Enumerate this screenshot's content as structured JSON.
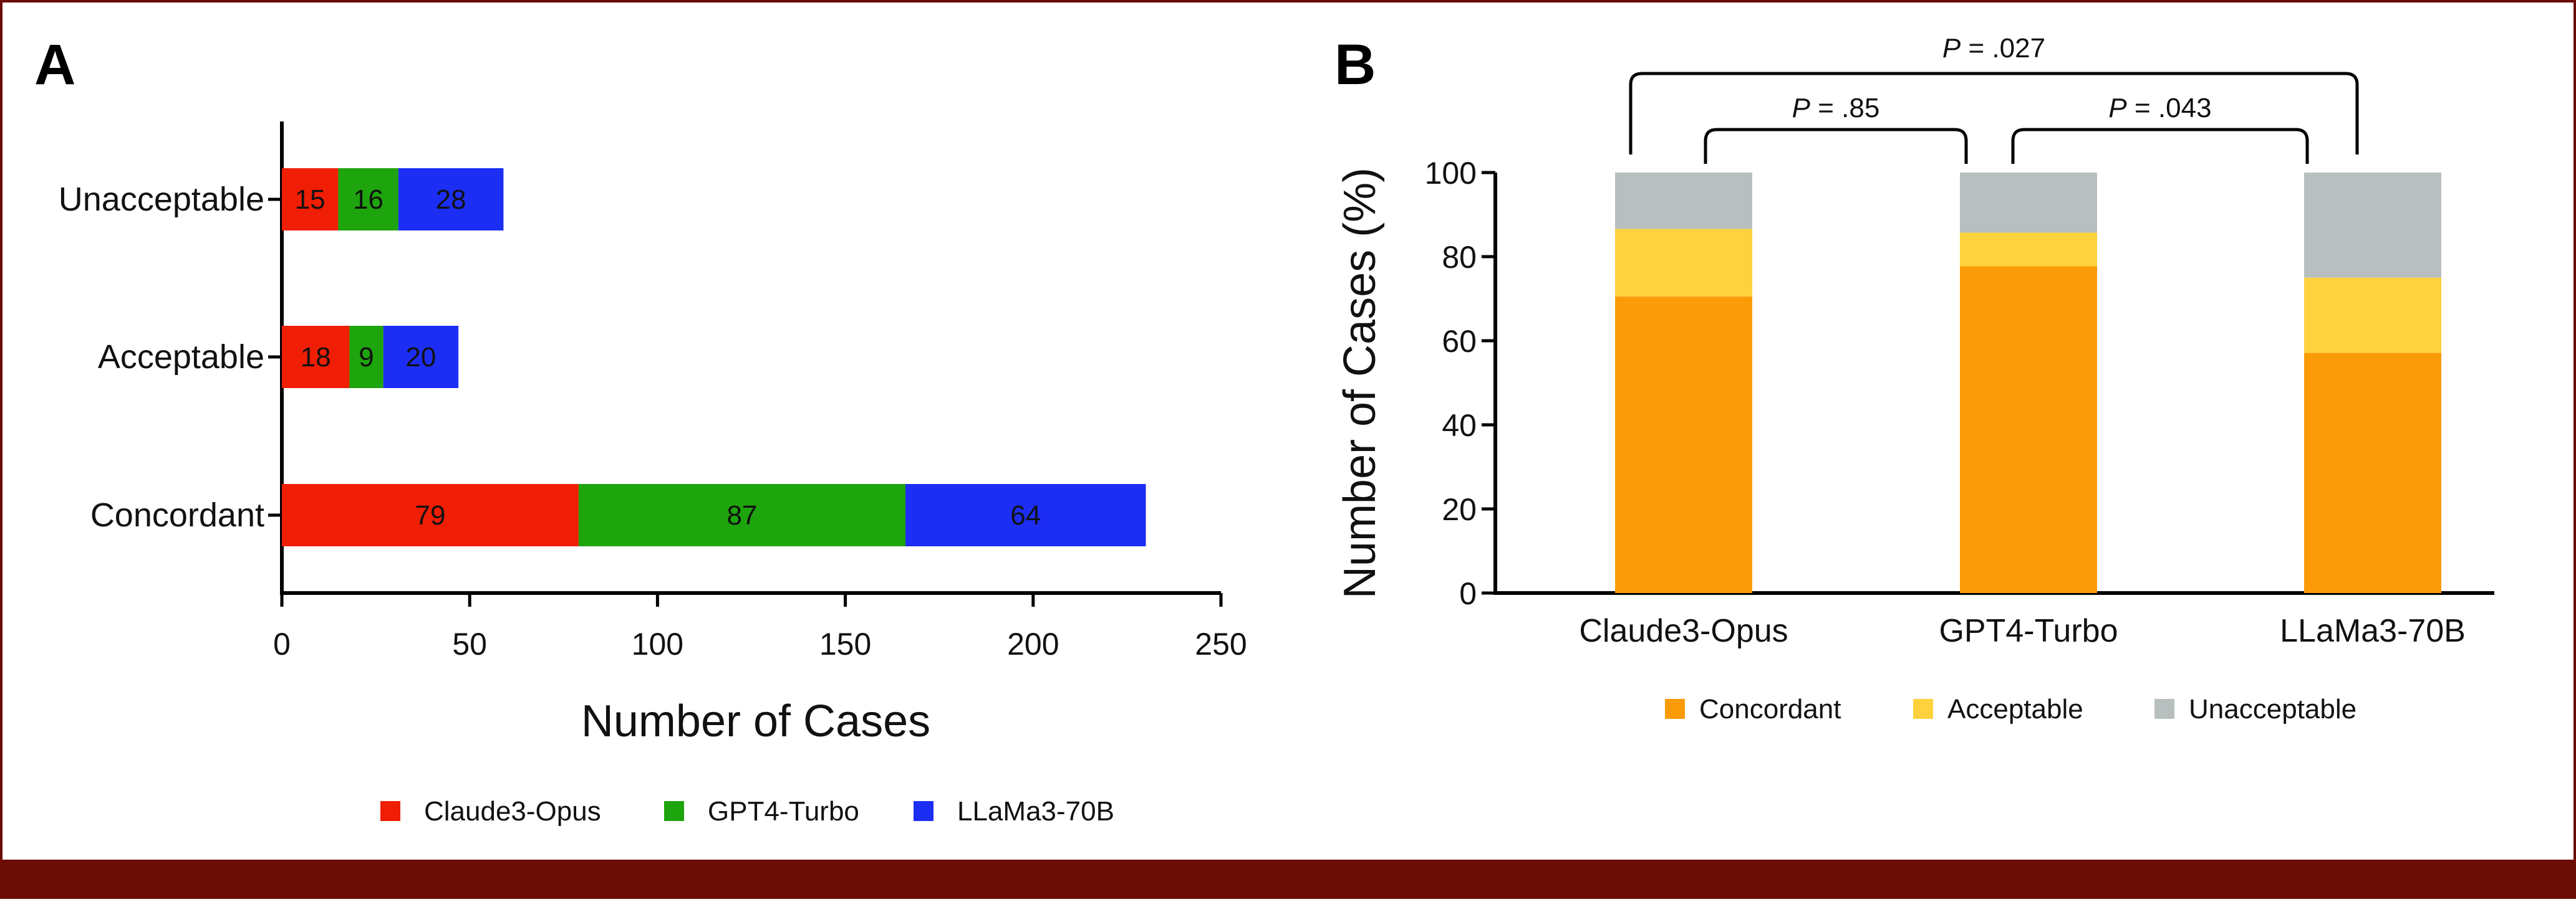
{
  "colors": {
    "frame": "#6b0c05",
    "axis": "#000000",
    "claude": "#f01e04",
    "gpt": "#1ea40c",
    "llama": "#1c2ef3",
    "concordant": "#fb9b08",
    "acceptable": "#fdd23c",
    "unacceptable": "#b8bfbf"
  },
  "chart_data": [
    {
      "panel": "A",
      "type": "bar",
      "orientation": "horizontal",
      "stacked": true,
      "categories": [
        "Unacceptable",
        "Acceptable",
        "Concordant"
      ],
      "series": [
        {
          "name": "Claude3-Opus",
          "values": [
            15,
            18,
            79
          ]
        },
        {
          "name": "GPT4-Turbo",
          "values": [
            16,
            9,
            87
          ]
        },
        {
          "name": "LLaMa3-70B",
          "values": [
            28,
            20,
            64
          ]
        }
      ],
      "xlabel": "Number of Cases",
      "ylabel": "",
      "xlim": [
        0,
        250
      ],
      "xticks": [
        0,
        50,
        100,
        150,
        200,
        250
      ],
      "legend_position": "bottom"
    },
    {
      "panel": "B",
      "type": "bar",
      "stacked": true,
      "categories": [
        "Claude3-Opus",
        "GPT4-Turbo",
        "LLaMa3-70B"
      ],
      "series": [
        {
          "name": "Concordant",
          "values": [
            70.5,
            77.7,
            57.1
          ]
        },
        {
          "name": "Acceptable",
          "values": [
            16.1,
            8.0,
            17.9
          ]
        },
        {
          "name": "Unacceptable",
          "values": [
            13.4,
            14.3,
            25.0
          ]
        }
      ],
      "ylabel": "Number of Cases (%)",
      "ylim": [
        0,
        100
      ],
      "yticks": [
        0,
        20,
        40,
        60,
        80,
        100
      ],
      "legend_position": "bottom",
      "annotations": [
        {
          "from": 0,
          "to": 2,
          "p_label": "P",
          "p_value": " = .027",
          "level": "top"
        },
        {
          "from": 0,
          "to": 1,
          "p_label": "P",
          "p_value": " = .85",
          "level": "lower"
        },
        {
          "from": 1,
          "to": 2,
          "p_label": "P",
          "p_value": " = .043",
          "level": "lower"
        }
      ]
    }
  ],
  "panel_labels": {
    "a": "A",
    "b": "B"
  }
}
